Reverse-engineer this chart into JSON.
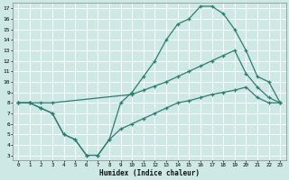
{
  "xlabel": "Humidex (Indice chaleur)",
  "bg_color": "#cde8e5",
  "grid_color": "#ffffff",
  "line_color": "#2e7d72",
  "xlim": [
    -0.5,
    23.5
  ],
  "ylim": [
    2.5,
    17.5
  ],
  "xticks": [
    0,
    1,
    2,
    3,
    4,
    5,
    6,
    7,
    8,
    9,
    10,
    11,
    12,
    13,
    14,
    15,
    16,
    17,
    18,
    19,
    20,
    21,
    22,
    23
  ],
  "yticks": [
    3,
    4,
    5,
    6,
    7,
    8,
    9,
    10,
    11,
    12,
    13,
    14,
    15,
    16,
    17
  ],
  "line1_x": [
    0,
    1,
    2,
    3,
    4,
    5,
    6,
    7,
    8,
    9,
    10,
    11,
    12,
    13,
    14,
    15,
    16,
    17,
    18,
    19,
    20,
    21,
    22,
    23
  ],
  "line1_y": [
    8,
    8,
    7.5,
    7,
    5,
    4.5,
    3.0,
    3.0,
    4.5,
    8.0,
    9.0,
    10.5,
    12.0,
    14.0,
    15.5,
    16.0,
    17.2,
    17.2,
    16.5,
    15.0,
    13.0,
    10.5,
    10.0,
    8.0
  ],
  "line2_x": [
    0,
    1,
    2,
    3,
    10,
    11,
    12,
    13,
    14,
    15,
    16,
    17,
    18,
    19,
    20,
    21,
    22,
    23
  ],
  "line2_y": [
    8,
    8,
    8,
    8,
    8.8,
    9.2,
    9.6,
    10.0,
    10.5,
    11.0,
    11.5,
    12.0,
    12.5,
    13.0,
    10.8,
    9.5,
    8.5,
    8.0
  ],
  "line3_x": [
    0,
    1,
    2,
    3,
    4,
    5,
    6,
    7,
    8,
    9,
    10,
    11,
    12,
    13,
    14,
    15,
    16,
    17,
    18,
    19,
    20,
    21,
    22,
    23
  ],
  "line3_y": [
    8,
    8,
    7.5,
    7,
    5,
    4.5,
    3.0,
    3.0,
    4.5,
    5.5,
    6.0,
    6.5,
    7.0,
    7.5,
    8.0,
    8.2,
    8.5,
    8.8,
    9.0,
    9.2,
    9.5,
    8.5,
    8.0,
    8.0
  ]
}
